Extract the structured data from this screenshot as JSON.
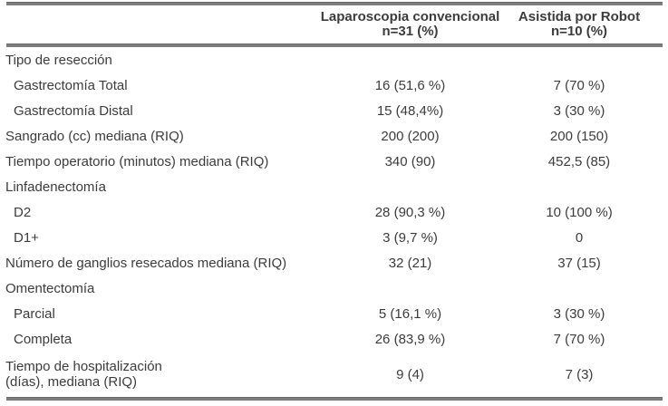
{
  "meta": {
    "background_color": "#ffffff",
    "text_color": "#3c3c3c",
    "rule_color": "#7d7d7d"
  },
  "table": {
    "header": {
      "label_col": "",
      "col2_line1": "Laparoscopia convencional",
      "col2_line2": "n=31 (%)",
      "col3_line1": "Asistida por Robot",
      "col3_line2": "n=10 (%)"
    },
    "rows": [
      {
        "label": "Tipo de resección",
        "conv": "",
        "robot": ""
      },
      {
        "label": "Gastrectomía Total",
        "conv": "16 (51,6 %)",
        "robot": "7 (70 %)"
      },
      {
        "label": "Gastrectomía Distal",
        "conv": "15 (48,4%)",
        "robot": "3 (30 %)"
      },
      {
        "label": "Sangrado (cc) mediana (RIQ)",
        "conv": "200 (200)",
        "robot": "200 (150)"
      },
      {
        "label": "Tiempo operatorio (minutos) mediana (RIQ)",
        "conv": "340 (90)",
        "robot": "452,5 (85)"
      },
      {
        "label": "Linfadenectomía",
        "conv": "",
        "robot": ""
      },
      {
        "label": "D2",
        "conv": "28 (90,3 %)",
        "robot": "10 (100 %)"
      },
      {
        "label": "D1+",
        "conv": "3 (9,7 %)",
        "robot": "0"
      },
      {
        "label": "Número de ganglios resecados mediana (RIQ)",
        "conv": "32 (21)",
        "robot": "37 (15)"
      },
      {
        "label": "Omentectomía",
        "conv": "",
        "robot": ""
      },
      {
        "label": "Parcial",
        "conv": "5 (16,1 %)",
        "robot": "3 (30 %)"
      },
      {
        "label": "Completa",
        "conv": "26 (83,9 %)",
        "robot": "7 (70 %)"
      },
      {
        "label_line1": "Tiempo de hospitalización",
        "label_line2": "(días), mediana (RIQ)",
        "conv": "9 (4)",
        "robot": "7 (3)"
      }
    ]
  }
}
